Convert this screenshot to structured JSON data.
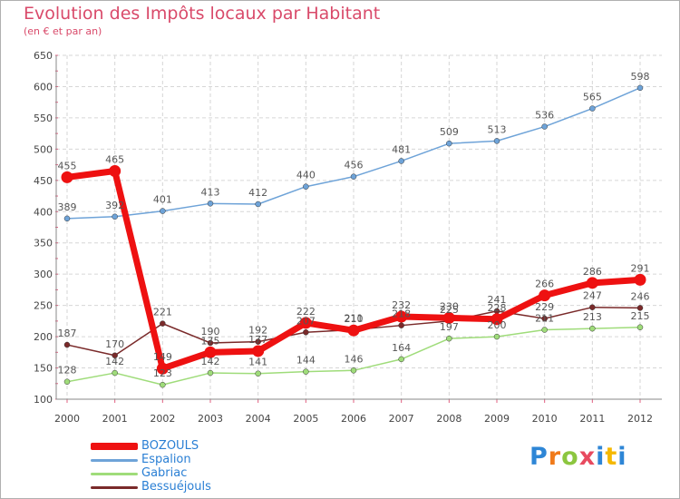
{
  "title": "Evolution des Impôts locaux par Habitant",
  "subtitle": "(en € et par an)",
  "brand": "Proxiti",
  "colors": {
    "bozouls": "#ee1111",
    "espalion": "#6ea3d8",
    "gabriac": "#9fdc7a",
    "bessuejouls": "#7a2a2a",
    "title": "#d94a6a",
    "legend_text": "#2a7fd4"
  },
  "chart_data": {
    "type": "line",
    "title": "Evolution des Impôts locaux par Habitant",
    "subtitle": "(en € et par an)",
    "x": [
      "2000",
      "2001",
      "2002",
      "2003",
      "2004",
      "2005",
      "2006",
      "2007",
      "2008",
      "2009",
      "2010",
      "2011",
      "2012"
    ],
    "yticks": [
      100,
      150,
      200,
      250,
      300,
      350,
      400,
      450,
      500,
      550,
      600,
      650
    ],
    "ylim": [
      100,
      650
    ],
    "grid": true,
    "legend_position": "bottom-left",
    "series": [
      {
        "name": "BOZOULS",
        "key": "bozouls",
        "values": [
          455,
          465,
          149,
          175,
          177,
          222,
          210,
          232,
          230,
          228,
          266,
          286,
          291
        ]
      },
      {
        "name": "Espalion",
        "key": "espalion",
        "values": [
          389,
          392,
          401,
          413,
          412,
          440,
          456,
          481,
          509,
          513,
          536,
          565,
          598
        ]
      },
      {
        "name": "Gabriac",
        "key": "gabriac",
        "values": [
          128,
          142,
          123,
          142,
          141,
          144,
          146,
          164,
          197,
          200,
          211,
          213,
          215
        ]
      },
      {
        "name": "Bessuéjouls",
        "key": "bessuejouls",
        "values": [
          187,
          170,
          221,
          190,
          192,
          207,
          211,
          218,
          225,
          241,
          229,
          247,
          246
        ]
      }
    ]
  }
}
